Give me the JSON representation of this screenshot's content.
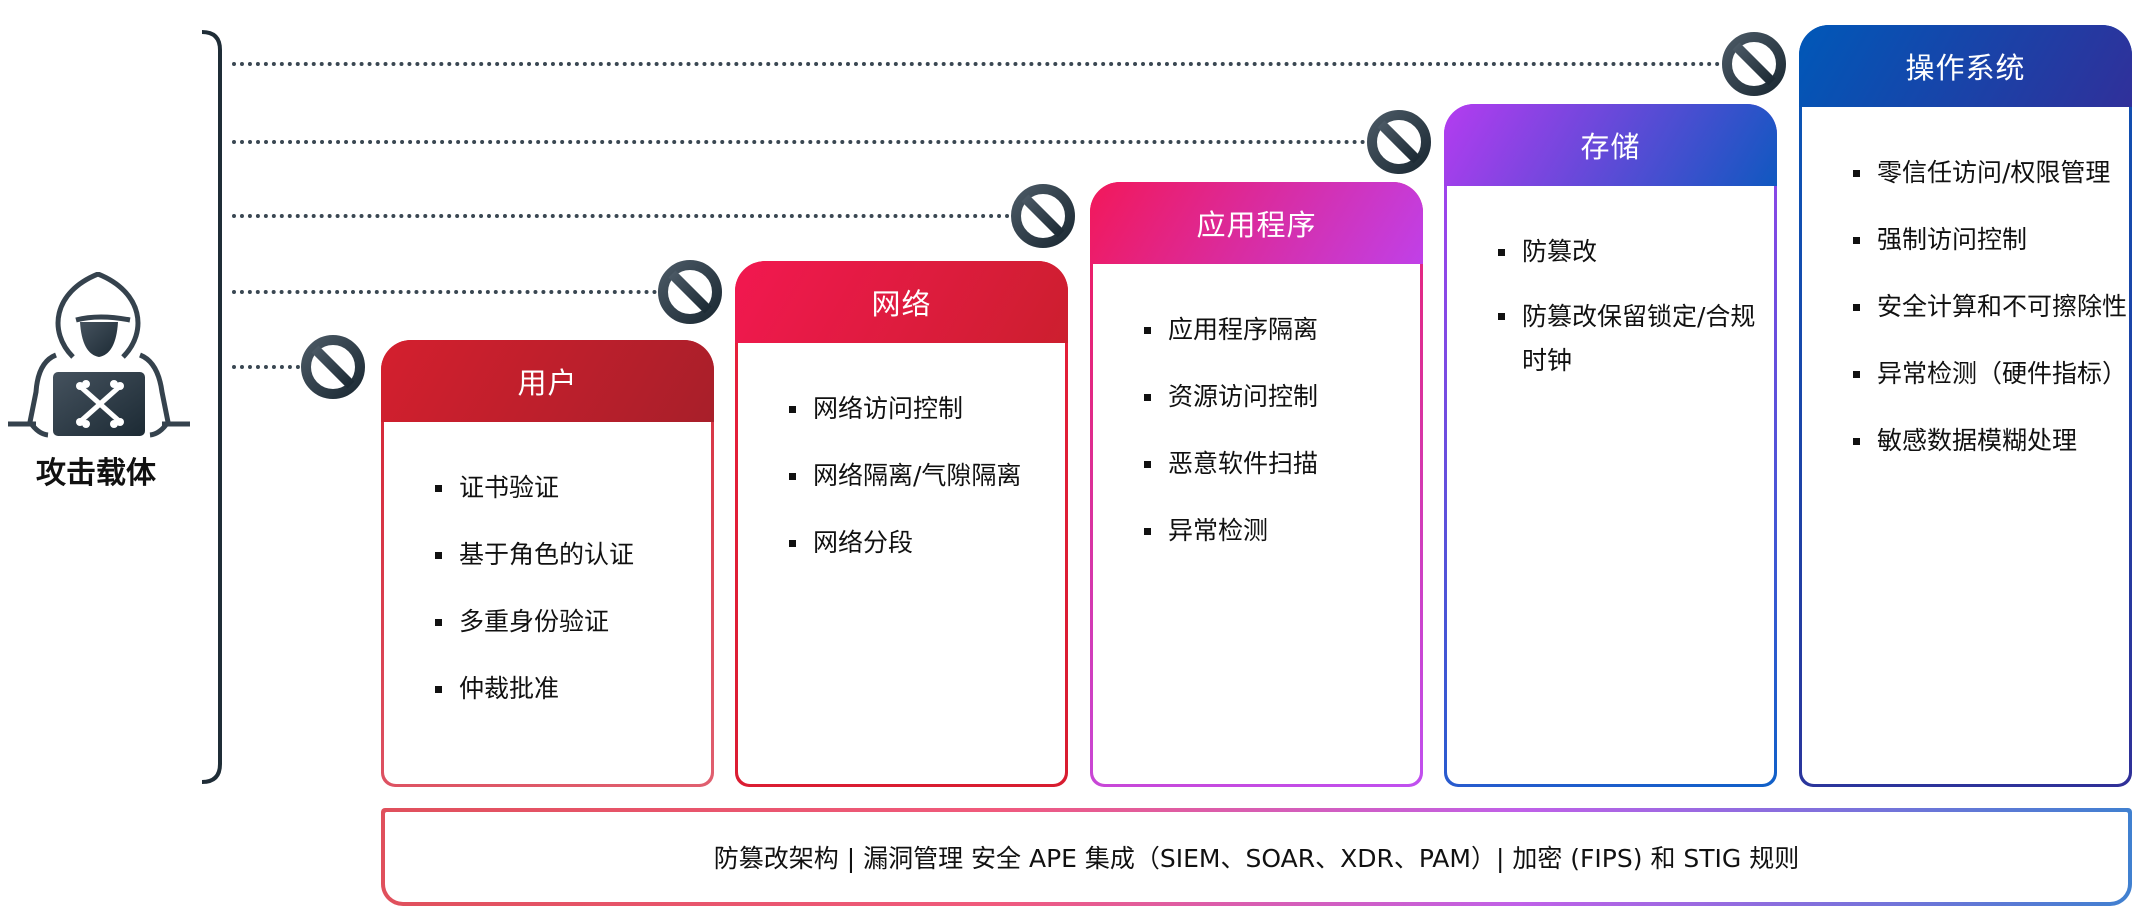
{
  "attacker": {
    "label": "攻击载体",
    "icon": "hacker-icon"
  },
  "cards": [
    {
      "title": "用户",
      "items": [
        "证书验证",
        "基于角色的认证",
        "多重身份验证",
        "仲裁批准"
      ],
      "colors": [
        "#d41f2e",
        "#a81f2a"
      ],
      "border": [
        "#d42030",
        "#e06070"
      ]
    },
    {
      "title": "网络",
      "items": [
        "网络访问控制",
        "网络隔离/气隙隔离",
        "网络分段"
      ],
      "colors": [
        "#f21850",
        "#cc1f2e"
      ],
      "border": [
        "#e8203c",
        "#d81c30"
      ]
    },
    {
      "title": "应用程序",
      "items": [
        "应用程序隔离",
        "资源访问控制",
        "恶意软件扫描",
        "异常检测"
      ],
      "colors": [
        "#f2185a",
        "#c040e8"
      ],
      "border": [
        "#f01858",
        "#c050f0"
      ]
    },
    {
      "title": "存储",
      "items": [
        "防篡改",
        "防篡改保留锁定/合规时钟"
      ],
      "colors": [
        "#b43cf0",
        "#1058c0"
      ],
      "border": [
        "#b040f0",
        "#1060c8"
      ]
    },
    {
      "title": "操作系统",
      "items": [
        "零信任访问/权限管理",
        "强制访问控制",
        "安全计算和不可擦除性",
        "异常检测（硬件指标）",
        "敏感数据模糊处理"
      ],
      "colors": [
        "#0058b8",
        "#30309a"
      ],
      "border": [
        "#0858b8",
        "#303098"
      ]
    }
  ],
  "blocked_icon": "no-entry-icon",
  "bottom_bar": {
    "text": "防篡改架构 | 漏洞管理 安全 APE 集成（SIEM、SOAR、XDR、PAM）| 加密 (FIPS) 和 STIG 规则"
  }
}
